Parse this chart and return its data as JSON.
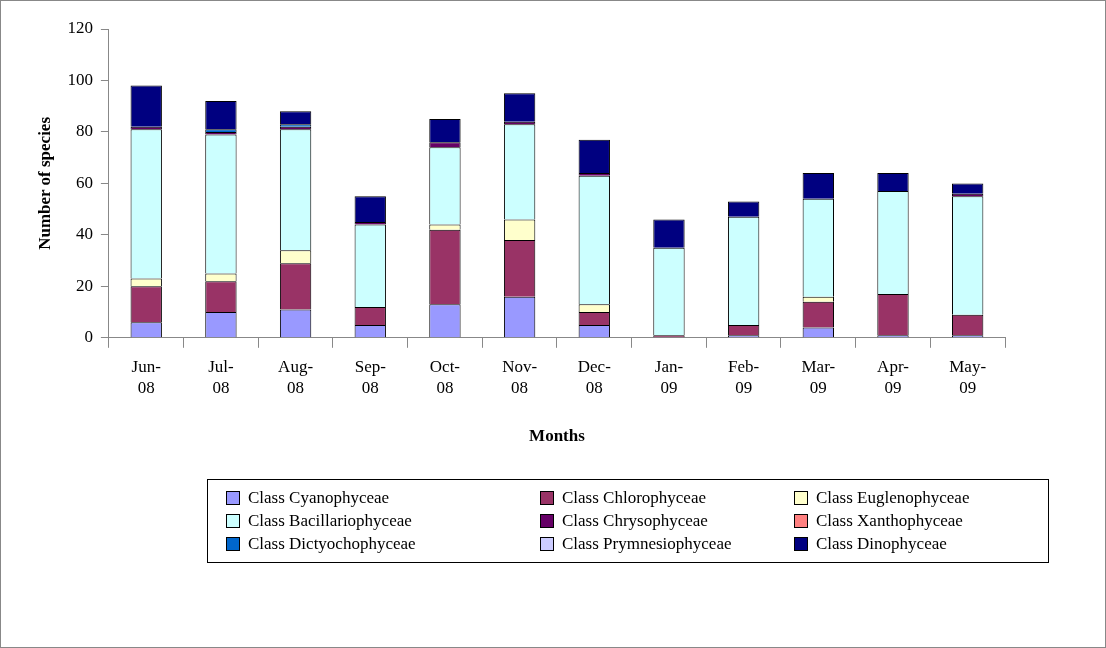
{
  "chart_data": {
    "type": "bar",
    "stacked": true,
    "xlabel": "Months",
    "ylabel": "Number of species",
    "categories": [
      "Jun-08",
      "Jul-08",
      "Aug-08",
      "Sep-08",
      "Oct-08",
      "Nov-08",
      "Dec-08",
      "Jan-09",
      "Feb-09",
      "Mar-09",
      "Apr-09",
      "May-09"
    ],
    "ylim": [
      0,
      120
    ],
    "yticks": [
      0,
      20,
      40,
      60,
      80,
      100,
      120
    ],
    "grid": false,
    "legend": "bottom",
    "series": [
      {
        "name": "Class Cyanophyceae",
        "color": "#9999ff",
        "values": [
          6,
          10,
          11,
          5,
          13,
          16,
          5,
          0,
          1,
          4,
          1,
          1
        ]
      },
      {
        "name": "Class Chlorophyceae",
        "color": "#993366",
        "values": [
          14,
          12,
          18,
          7,
          29,
          22,
          5,
          1,
          4,
          10,
          16,
          8
        ]
      },
      {
        "name": "Class Euglenophyceae",
        "color": "#ffffcc",
        "values": [
          3,
          3,
          5,
          0,
          2,
          8,
          3,
          0,
          0,
          2,
          0,
          0
        ]
      },
      {
        "name": "Class Bacillariophyceae",
        "color": "#ccffff",
        "values": [
          58,
          54,
          47,
          32,
          30,
          37,
          50,
          34,
          42,
          38,
          40,
          46
        ]
      },
      {
        "name": "Class Chrysophyceae",
        "color": "#660066",
        "values": [
          1,
          1,
          1,
          1,
          2,
          1,
          1,
          0,
          0,
          0,
          0,
          1
        ]
      },
      {
        "name": "Class Xanthophyceae",
        "color": "#ff8080",
        "values": [
          0,
          0,
          0,
          0,
          0,
          0,
          0,
          0,
          0,
          0,
          0,
          0
        ]
      },
      {
        "name": "Class Dictyochophyceae",
        "color": "#0066cc",
        "values": [
          0,
          1,
          1,
          0,
          0,
          0,
          0,
          0,
          0,
          0,
          0,
          0
        ]
      },
      {
        "name": "Class Prymnesiophyceae",
        "color": "#ccccff",
        "values": [
          0,
          0,
          0,
          0,
          0,
          0,
          0,
          0,
          0,
          0,
          0,
          0
        ]
      },
      {
        "name": "Class Dinophyceae",
        "color": "#000080",
        "values": [
          16,
          11,
          5,
          10,
          9,
          11,
          13,
          11,
          6,
          10,
          7,
          4
        ]
      }
    ]
  }
}
